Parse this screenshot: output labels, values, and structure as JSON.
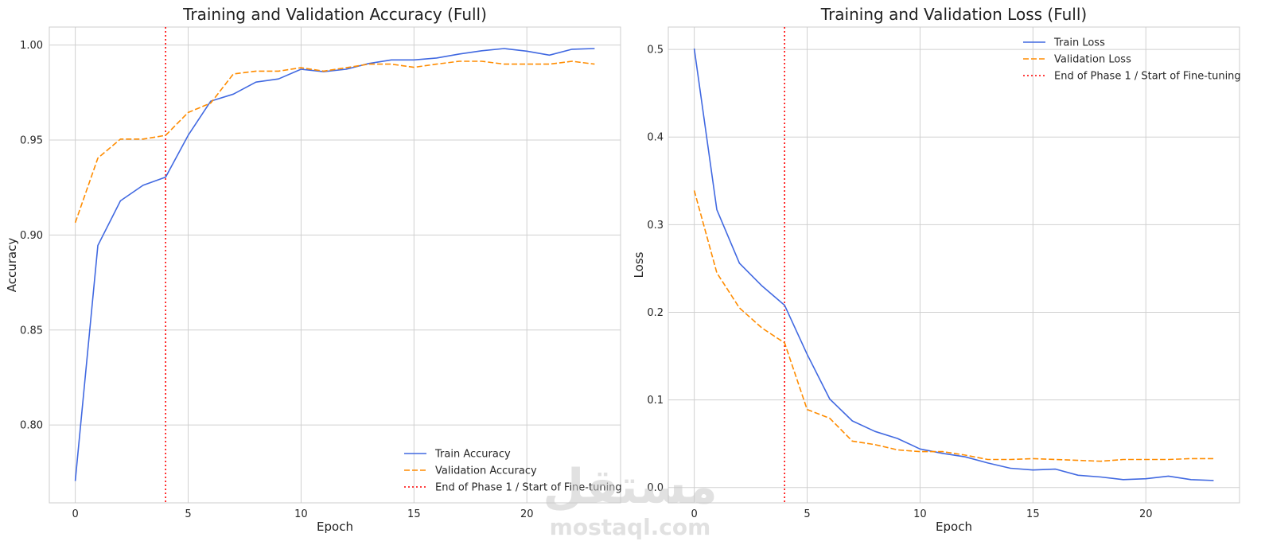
{
  "chart_data": [
    {
      "type": "line",
      "title": "Training and Validation Accuracy (Full)",
      "xlabel": "Epoch",
      "ylabel": "Accuracy",
      "xlim": [
        -1.15,
        24.15
      ],
      "ylim": [
        0.759,
        1.0095
      ],
      "xticks": [
        0,
        5,
        10,
        15,
        20
      ],
      "yticks": [
        0.8,
        0.85,
        0.9,
        0.95,
        1.0
      ],
      "ytick_labels": [
        "0.80",
        "0.85",
        "0.90",
        "0.95",
        "1.00"
      ],
      "grid": true,
      "legend_position": "lower-right",
      "x": [
        0,
        1,
        2,
        3,
        4,
        5,
        6,
        7,
        8,
        9,
        10,
        11,
        12,
        13,
        14,
        15,
        16,
        17,
        18,
        19,
        20,
        21,
        22,
        23
      ],
      "series": [
        {
          "name": "Train Accuracy",
          "color": "#4169e1",
          "style": "solid",
          "values": [
            0.7705,
            0.8945,
            0.918,
            0.9262,
            0.9305,
            0.9525,
            0.9705,
            0.9742,
            0.9805,
            0.9822,
            0.9873,
            0.986,
            0.9873,
            0.9903,
            0.9922,
            0.9922,
            0.9932,
            0.9953,
            0.997,
            0.9982,
            0.9968,
            0.9947,
            0.9978,
            0.9982
          ]
        },
        {
          "name": "Validation Accuracy",
          "color": "#ff8c00",
          "style": "dashed",
          "values": [
            0.9065,
            0.9405,
            0.9505,
            0.9505,
            0.9525,
            0.9645,
            0.9695,
            0.9848,
            0.9863,
            0.9863,
            0.9881,
            0.9863,
            0.9881,
            0.99,
            0.99,
            0.9883,
            0.99,
            0.9915,
            0.9915,
            0.99,
            0.99,
            0.99,
            0.9915,
            0.99
          ]
        }
      ],
      "vline": {
        "name": "End of Phase 1 / Start of Fine-tuning",
        "x": 4,
        "color": "#ff0000",
        "style": "dotted"
      }
    },
    {
      "type": "line",
      "title": "Training and Validation Loss (Full)",
      "xlabel": "Epoch",
      "ylabel": "Loss",
      "xlim": [
        -1.15,
        24.15
      ],
      "ylim": [
        -0.0175,
        0.5255
      ],
      "xticks": [
        0,
        5,
        10,
        15,
        20
      ],
      "yticks": [
        0.0,
        0.1,
        0.2,
        0.3,
        0.4,
        0.5
      ],
      "ytick_labels": [
        "0.0",
        "0.1",
        "0.2",
        "0.3",
        "0.4",
        "0.5"
      ],
      "grid": true,
      "legend_position": "upper-right",
      "x": [
        0,
        1,
        2,
        3,
        4,
        5,
        6,
        7,
        8,
        9,
        10,
        11,
        12,
        13,
        14,
        15,
        16,
        17,
        18,
        19,
        20,
        21,
        22,
        23
      ],
      "series": [
        {
          "name": "Train Loss",
          "color": "#4169e1",
          "style": "solid",
          "values": [
            0.501,
            0.317,
            0.256,
            0.23,
            0.208,
            0.152,
            0.101,
            0.076,
            0.064,
            0.056,
            0.044,
            0.039,
            0.035,
            0.028,
            0.022,
            0.02,
            0.021,
            0.014,
            0.012,
            0.009,
            0.01,
            0.013,
            0.009,
            0.008
          ]
        },
        {
          "name": "Validation Loss",
          "color": "#ff8c00",
          "style": "dashed",
          "values": [
            0.339,
            0.245,
            0.205,
            0.182,
            0.165,
            0.089,
            0.079,
            0.053,
            0.049,
            0.043,
            0.041,
            0.041,
            0.037,
            0.032,
            0.032,
            0.033,
            0.032,
            0.031,
            0.03,
            0.032,
            0.032,
            0.032,
            0.033,
            0.033
          ]
        }
      ],
      "vline": {
        "name": "End of Phase 1 / Start of Fine-tuning",
        "x": 4,
        "color": "#ff0000",
        "style": "dotted"
      }
    }
  ],
  "watermark": {
    "arabic": "مستقل",
    "latin": "mostaql.com"
  }
}
